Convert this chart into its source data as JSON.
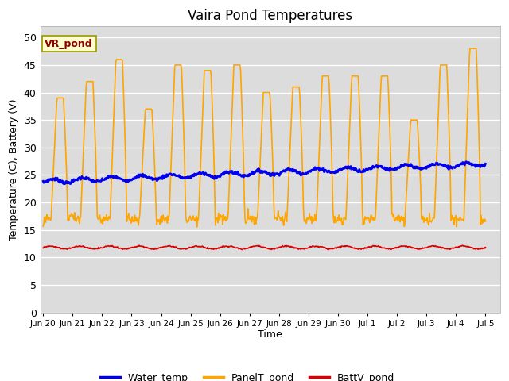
{
  "title": "Vaira Pond Temperatures",
  "xlabel": "Time",
  "ylabel": "Temperature (C), Battery (V)",
  "ylim": [
    0,
    52
  ],
  "yticks": [
    0,
    5,
    10,
    15,
    20,
    25,
    30,
    35,
    40,
    45,
    50
  ],
  "bg_color": "#dcdcdc",
  "fig_bg": "#ffffff",
  "water_color": "#0000ee",
  "panel_color": "#ffa500",
  "batt_color": "#dd0000",
  "legend_labels": [
    "Water_temp",
    "PanelT_pond",
    "BattV_pond"
  ],
  "annotation_text": "VR_pond",
  "xtick_labels": [
    "Jun 20",
    "Jun 21",
    "Jun 22",
    "Jun 23",
    "Jun 24",
    "Jun 25",
    "Jun 26",
    "Jun 27",
    "Jun 28",
    "Jun 29",
    "Jun 30",
    "Jul 1",
    "Jul 2",
    "Jul 3",
    "Jul 4",
    "Jul 5"
  ],
  "linewidth": 1.2,
  "water_linewidth": 2.0
}
